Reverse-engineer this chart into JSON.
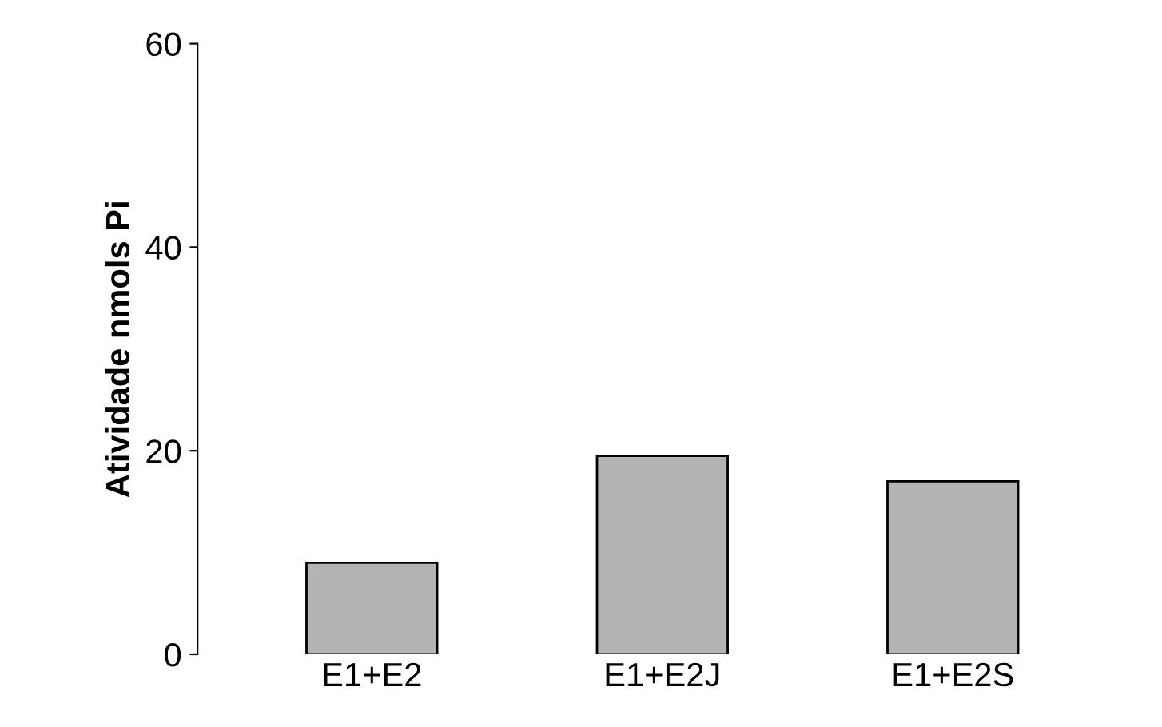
{
  "chart_data": {
    "type": "bar",
    "ylabel": "Atividade nmols Pi",
    "categories": [
      "E1+E2",
      "E1+E2J",
      "E1+E2S"
    ],
    "values": [
      9,
      19.5,
      17
    ],
    "color": "#b4b4b4",
    "ylim": [
      0,
      60
    ],
    "yticks": [
      0,
      20,
      40,
      60
    ],
    "grid": false
  }
}
